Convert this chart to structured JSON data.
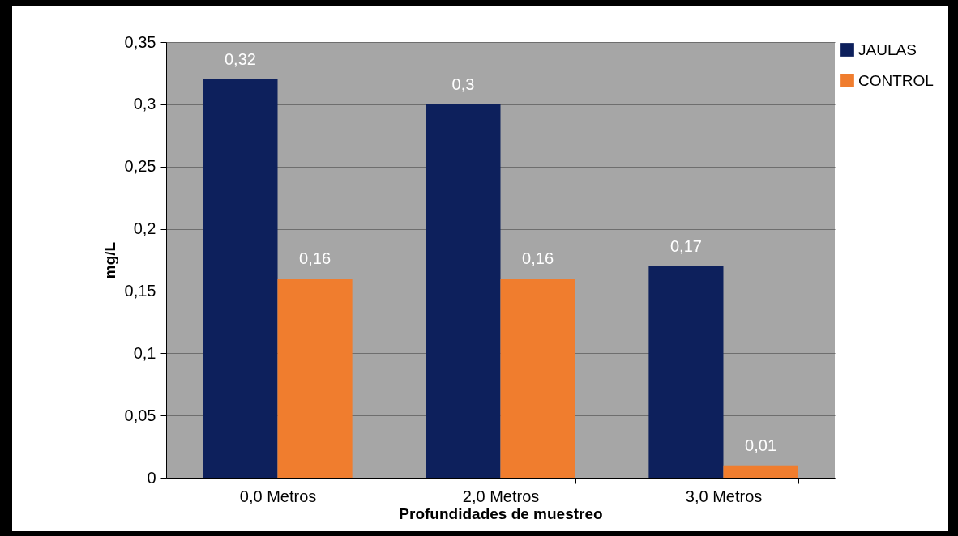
{
  "chart_data": {
    "type": "bar",
    "xlabel": "Profundidades de muestreo",
    "ylabel": "mg/L",
    "categories": [
      "0,0 Metros",
      "2,0 Metros",
      "3,0 Metros"
    ],
    "series": [
      {
        "name": "JAULAS",
        "color": "#0d205c",
        "values": [
          0.32,
          0.3,
          0.17
        ],
        "value_labels": [
          "0,32",
          "0,3",
          "0,17"
        ]
      },
      {
        "name": "CONTROL",
        "color": "#f07d2e",
        "values": [
          0.16,
          0.16,
          0.01
        ],
        "value_labels": [
          "0,16",
          "0,16",
          "0,01"
        ]
      }
    ],
    "ylim": [
      0,
      0.35
    ],
    "yticks": [
      0,
      {
        "value": 0.05,
        "label": "0,05"
      },
      {
        "value": 0.1,
        "label": "0,1"
      },
      {
        "value": 0.15,
        "label": "0,15"
      },
      {
        "value": 0.2,
        "label": "0,2"
      },
      {
        "value": 0.25,
        "label": "0,25"
      },
      {
        "value": 0.3,
        "label": "0,3"
      },
      {
        "value": 0.35,
        "label": "0,35"
      }
    ],
    "grid": "y",
    "legend": "right"
  }
}
